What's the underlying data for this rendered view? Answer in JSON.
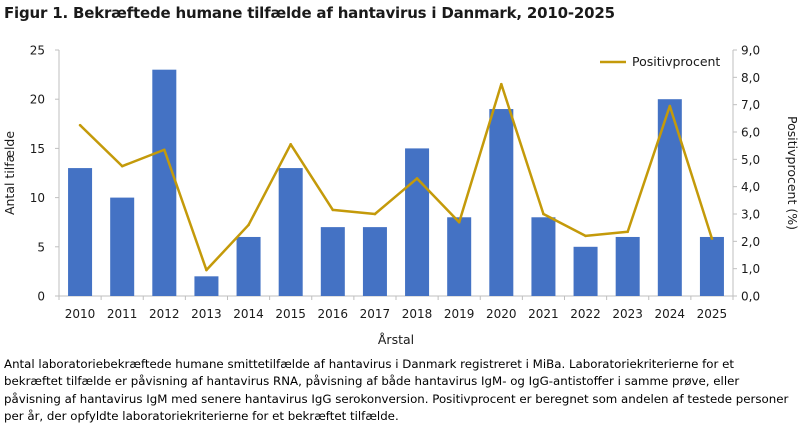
{
  "figure_title": "Figur 1. Bekræftede humane tilfælde af hantavirus i Danmark, 2010-2025",
  "caption": "Antal laboratoriebekræftede humane smittetilfælde af hantavirus i Danmark registreret i MiBa. Laboratoriekriterierne for et bekræftet tilfælde er påvisning af hantavirus RNA, påvisning af både hantavirus IgM- og IgG-antistoffer i samme prøve, eller påvisning af hantavirus IgM med senere hantavirus IgG serokonversion. Positivprocent er beregnet som andelen af testede personer per år, der opfyldte laboratoriekriterierne for et bekræftet tilfælde.",
  "colors": {
    "bar": "#4472C4",
    "line": "#C49A0A",
    "axis": "#BFBFBF"
  },
  "chart_data": {
    "type": "bar",
    "title": "",
    "xlabel": "Årstal",
    "ylabel": "Antal tilfælde",
    "y2label": "Positivprocent (%)",
    "categories": [
      "2010",
      "2011",
      "2012",
      "2013",
      "2014",
      "2015",
      "2016",
      "2017",
      "2018",
      "2019",
      "2020",
      "2021",
      "2022",
      "2023",
      "2024",
      "2025"
    ],
    "ylim": [
      0,
      25
    ],
    "yticks": [
      "0",
      "5",
      "10",
      "15",
      "20",
      "25"
    ],
    "y2lim": [
      0,
      9
    ],
    "y2ticks": [
      "0,0",
      "1,0",
      "2,0",
      "3,0",
      "4,0",
      "5,0",
      "6,0",
      "7,0",
      "8,0",
      "9,0"
    ],
    "legend_position": "top-right",
    "grid": false,
    "series": [
      {
        "type": "bar",
        "axis": "left",
        "values": [
          13,
          10,
          23,
          2,
          6,
          13,
          7,
          7,
          15,
          8,
          19,
          8,
          5,
          6,
          20,
          6
        ]
      },
      {
        "type": "line",
        "axis": "right",
        "name": "Positivprocent",
        "values": [
          6.25,
          4.75,
          5.35,
          0.95,
          2.6,
          5.55,
          3.15,
          3.0,
          4.3,
          2.7,
          7.75,
          3.0,
          2.2,
          2.35,
          6.95,
          2.1
        ]
      }
    ]
  }
}
